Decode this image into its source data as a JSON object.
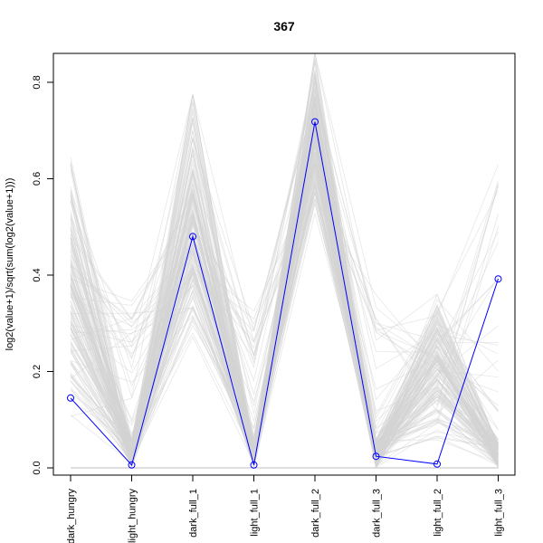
{
  "chart_data": {
    "type": "line",
    "title": "367",
    "xlabel": "",
    "ylabel": "log2(value+1)/sqrt(sum(log2(value+1)))",
    "categories": [
      "dark_hungry",
      "light_hungry",
      "dark_full_1",
      "light_full_1",
      "dark_full_2",
      "dark_full_3",
      "light_full_2",
      "light_full_3"
    ],
    "ylim": [
      -0.015,
      0.86
    ],
    "yticks": [
      0.0,
      0.2,
      0.4,
      0.6,
      0.8
    ],
    "grid": false,
    "legend": "none",
    "highlight_series": {
      "values": [
        0.145,
        0.006,
        0.48,
        0.006,
        0.718,
        0.024,
        0.008,
        0.392
      ],
      "color": "#0000ff",
      "marker": "open-circle"
    },
    "background_series": {
      "color": "#d3d3d3",
      "count": 160,
      "ranges": [
        [
          0.0,
          0.645
        ],
        [
          0.0,
          0.35
        ],
        [
          0.135,
          0.775
        ],
        [
          0.0,
          0.355
        ],
        [
          0.46,
          0.86
        ],
        [
          0.0,
          0.36
        ],
        [
          0.0,
          0.36
        ],
        [
          0.0,
          0.64
        ]
      ]
    }
  }
}
